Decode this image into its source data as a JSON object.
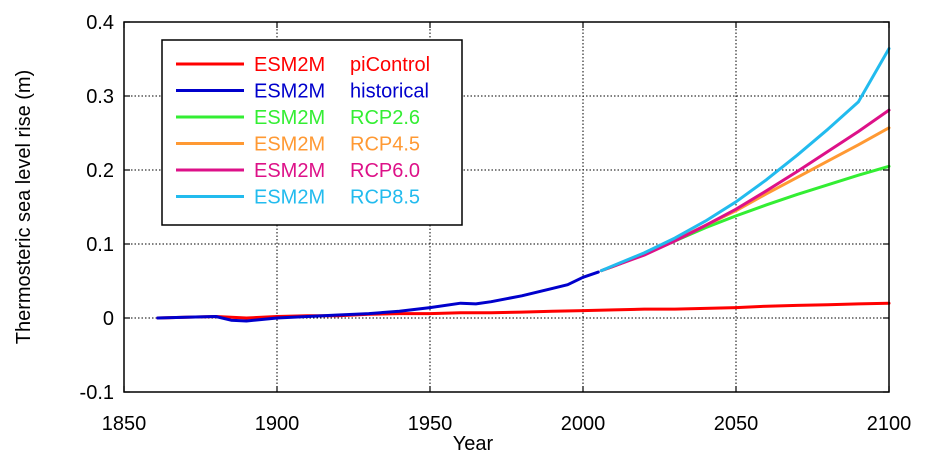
{
  "chart_data": {
    "type": "line",
    "title": "",
    "xlabel": "Year",
    "ylabel": "Thermosteric sea level rise (m)",
    "xlim": [
      1850,
      2100
    ],
    "ylim": [
      -0.1,
      0.4
    ],
    "xticks": [
      1850,
      1900,
      1950,
      2000,
      2050,
      2100
    ],
    "yticks": [
      -0.1,
      0,
      0.1,
      0.2,
      0.3,
      0.4
    ],
    "ytick_labels": [
      "-0.1",
      "0",
      "0.1",
      "0.2",
      "0.3",
      "0.4"
    ],
    "grid": true,
    "legend_position": "top-left",
    "series": [
      {
        "name": "ESM2M  piControl",
        "model": "ESM2M",
        "scenario": "piControl",
        "color": "#ff0000",
        "x": [
          1861,
          1870,
          1880,
          1890,
          1900,
          1910,
          1920,
          1930,
          1940,
          1950,
          1960,
          1970,
          1980,
          1990,
          2000,
          2010,
          2020,
          2030,
          2040,
          2050,
          2060,
          2070,
          2080,
          2090,
          2100
        ],
        "y": [
          0.0,
          0.001,
          0.002,
          0.0,
          0.002,
          0.003,
          0.003,
          0.005,
          0.006,
          0.006,
          0.007,
          0.007,
          0.008,
          0.009,
          0.01,
          0.011,
          0.012,
          0.012,
          0.013,
          0.014,
          0.016,
          0.017,
          0.018,
          0.019,
          0.02
        ]
      },
      {
        "name": "ESM2M  historical",
        "model": "ESM2M",
        "scenario": "historical",
        "color": "#0000cc",
        "x": [
          1861,
          1870,
          1880,
          1885,
          1890,
          1895,
          1900,
          1910,
          1920,
          1930,
          1940,
          1950,
          1960,
          1965,
          1970,
          1980,
          1990,
          1995,
          2000,
          2005
        ],
        "y": [
          0.0,
          0.001,
          0.002,
          -0.003,
          -0.004,
          -0.002,
          0.0,
          0.002,
          0.004,
          0.006,
          0.009,
          0.014,
          0.02,
          0.019,
          0.022,
          0.03,
          0.04,
          0.045,
          0.055,
          0.062
        ]
      },
      {
        "name": "ESM2M  RCP2.6",
        "model": "ESM2M",
        "scenario": "RCP2.6",
        "color": "#33ee33",
        "x": [
          2006,
          2010,
          2020,
          2030,
          2040,
          2050,
          2060,
          2070,
          2080,
          2090,
          2100
        ],
        "y": [
          0.064,
          0.07,
          0.086,
          0.104,
          0.122,
          0.138,
          0.153,
          0.167,
          0.18,
          0.193,
          0.205
        ]
      },
      {
        "name": "ESM2M  RCP4.5",
        "model": "ESM2M",
        "scenario": "RCP4.5",
        "color": "#ff9933",
        "x": [
          2006,
          2010,
          2020,
          2030,
          2040,
          2050,
          2060,
          2070,
          2080,
          2090,
          2100
        ],
        "y": [
          0.064,
          0.07,
          0.086,
          0.105,
          0.125,
          0.145,
          0.168,
          0.19,
          0.212,
          0.234,
          0.257
        ]
      },
      {
        "name": "ESM2M  RCP6.0",
        "model": "ESM2M",
        "scenario": "RCP6.0",
        "color": "#dd1188",
        "x": [
          2006,
          2010,
          2020,
          2030,
          2040,
          2050,
          2060,
          2070,
          2080,
          2090,
          2100
        ],
        "y": [
          0.064,
          0.07,
          0.085,
          0.104,
          0.125,
          0.147,
          0.172,
          0.198,
          0.225,
          0.252,
          0.281
        ]
      },
      {
        "name": "ESM2M  RCP8.5",
        "model": "ESM2M",
        "scenario": "RCP8.5",
        "color": "#22bbee",
        "x": [
          2006,
          2010,
          2020,
          2030,
          2040,
          2050,
          2060,
          2070,
          2080,
          2090,
          2100
        ],
        "y": [
          0.064,
          0.071,
          0.088,
          0.108,
          0.131,
          0.157,
          0.187,
          0.22,
          0.255,
          0.292,
          0.364
        ]
      }
    ]
  }
}
